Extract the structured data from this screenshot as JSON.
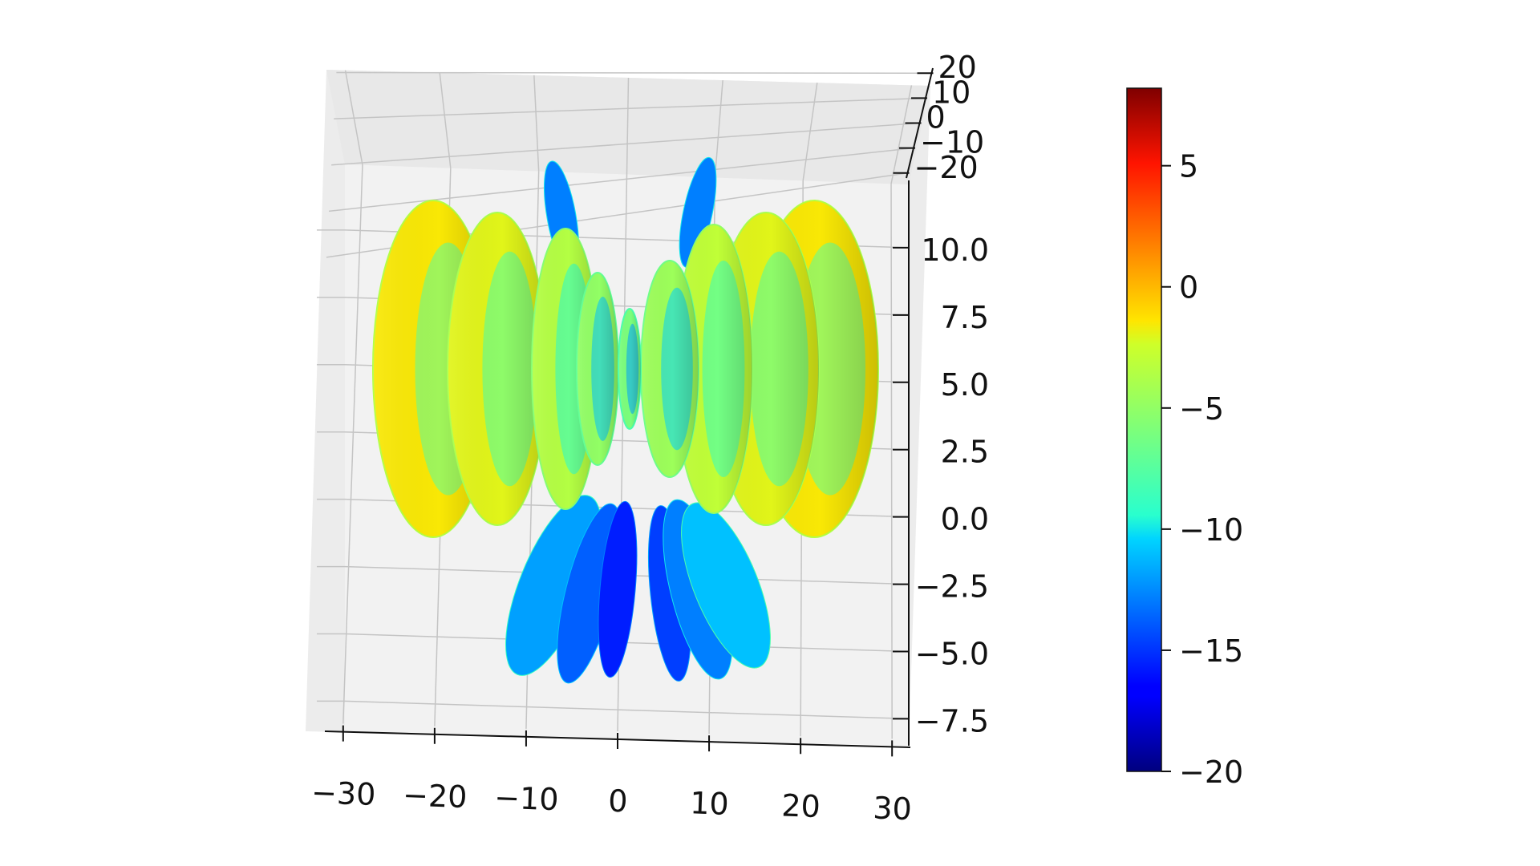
{
  "chart_data": {
    "type": "surface-3d",
    "title": "",
    "colormap": "jet",
    "axes": {
      "x": {
        "ticks": [
          -30,
          -20,
          -10,
          0,
          10,
          20,
          30
        ],
        "tick_labels": [
          "−30",
          "−20",
          "−10",
          "0",
          "10",
          "20",
          "30"
        ],
        "range": [
          -32,
          32
        ]
      },
      "y": {
        "ticks": [
          -20,
          -10,
          0,
          10,
          20
        ],
        "tick_labels": [
          "−20",
          "−10",
          "0",
          "10",
          "20"
        ],
        "range": [
          -22,
          22
        ]
      },
      "z": {
        "ticks": [
          -7.5,
          -5.0,
          -2.5,
          0.0,
          2.5,
          5.0,
          7.5,
          10.0
        ],
        "tick_labels": [
          "−7.5",
          "−5.0",
          "−2.5",
          "0.0",
          "2.5",
          "5.0",
          "7.5",
          "10.0"
        ],
        "range": [
          -8.5,
          12.5
        ]
      }
    },
    "colorbar": {
      "range": [
        -20,
        8.2
      ],
      "ticks": [
        -20,
        -15,
        -10,
        -5,
        0,
        5
      ],
      "tick_labels": [
        "−20",
        "−15",
        "−10",
        "−5",
        "0",
        "5"
      ]
    },
    "grid": true
  }
}
